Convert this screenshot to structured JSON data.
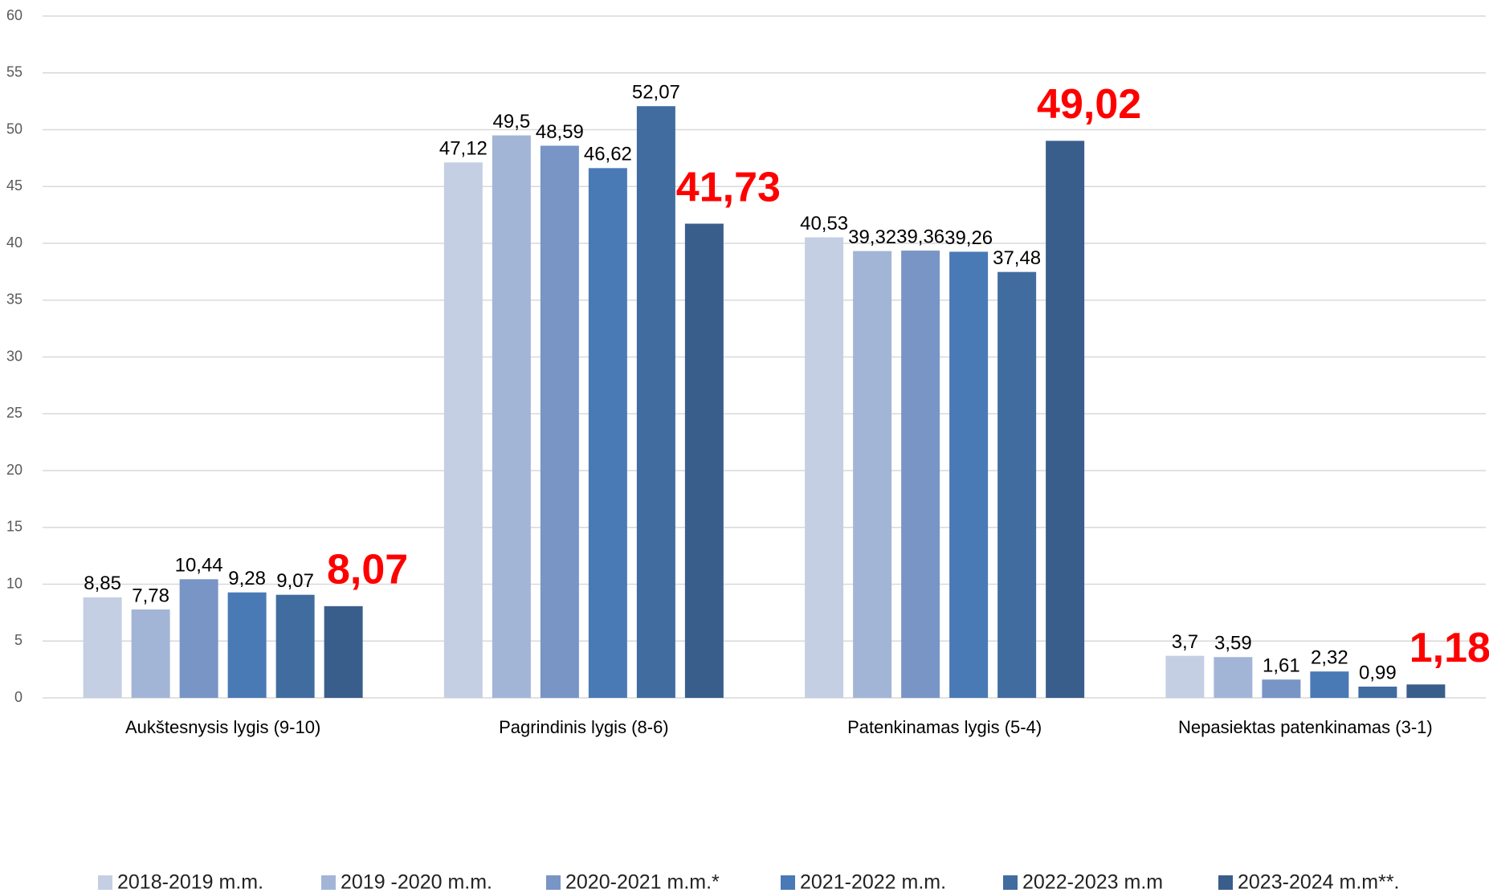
{
  "chart_data": {
    "type": "bar",
    "categories": [
      "Aukštesnysis lygis (9-10)",
      "Pagrindinis lygis (8-6)",
      "Patenkinamas lygis (5-4)",
      "Nepasiektas patenkinamas (3-1)"
    ],
    "series": [
      {
        "name": "2018-2019 m.m.",
        "color": "#c5cfe3",
        "values": [
          8.85,
          47.12,
          40.53,
          3.7
        ],
        "value_labels": [
          "8,85",
          "47,12",
          "40,53",
          "3,7"
        ]
      },
      {
        "name": "2019 -2020 m.m.",
        "color": "#a3b5d7",
        "values": [
          7.78,
          49.5,
          39.32,
          3.59
        ],
        "value_labels": [
          "7,78",
          "49,5",
          "39,32",
          "3,59"
        ]
      },
      {
        "name": "2020-2021 m.m.*",
        "color": "#7895c6",
        "values": [
          10.44,
          48.59,
          39.36,
          1.61
        ],
        "value_labels": [
          "10,44",
          "48,59",
          "39,36",
          "1,61"
        ]
      },
      {
        "name": "2021-2022 m.m.",
        "color": "#4a7ab5",
        "values": [
          9.28,
          46.62,
          39.26,
          2.32
        ],
        "value_labels": [
          "9,28",
          "46,62",
          "39,26",
          "2,32"
        ]
      },
      {
        "name": "2022-2023 m.m",
        "color": "#416ca0",
        "values": [
          9.07,
          52.07,
          37.48,
          0.99
        ],
        "value_labels": [
          "9,07",
          "52,07",
          "37,48",
          "0,99"
        ]
      },
      {
        "name": "2023-2024 m.m**.",
        "color": "#3a5e8c",
        "values": [
          8.07,
          41.73,
          49.02,
          1.18
        ],
        "value_labels": [
          "8,07",
          "41,73",
          "49,02",
          "1,18"
        ]
      }
    ],
    "ylim": [
      0,
      60
    ],
    "yticks": [
      0,
      5,
      10,
      15,
      20,
      25,
      30,
      35,
      40,
      45,
      50,
      55,
      60
    ],
    "grid": true,
    "legend": "bottom"
  }
}
